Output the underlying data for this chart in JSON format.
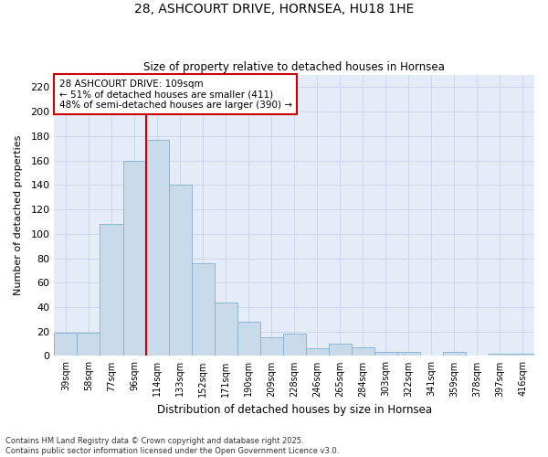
{
  "title": "28, ASHCOURT DRIVE, HORNSEA, HU18 1HE",
  "subtitle": "Size of property relative to detached houses in Hornsea",
  "xlabel": "Distribution of detached houses by size in Hornsea",
  "ylabel": "Number of detached properties",
  "categories": [
    "39sqm",
    "58sqm",
    "77sqm",
    "96sqm",
    "114sqm",
    "133sqm",
    "152sqm",
    "171sqm",
    "190sqm",
    "209sqm",
    "228sqm",
    "246sqm",
    "265sqm",
    "284sqm",
    "303sqm",
    "322sqm",
    "341sqm",
    "359sqm",
    "378sqm",
    "397sqm",
    "416sqm"
  ],
  "values": [
    19,
    19,
    108,
    160,
    177,
    140,
    76,
    44,
    28,
    15,
    18,
    6,
    10,
    7,
    3,
    3,
    0,
    3,
    0,
    2,
    2
  ],
  "bar_color": "#c9daea",
  "bar_edge_color": "#7fb0d0",
  "marker_line_color": "#cc0000",
  "annotation_box_edge_color": "#cc0000",
  "annotation_text_line1": "28 ASHCOURT DRIVE: 109sqm",
  "annotation_text_line2": "← 51% of detached houses are smaller (411)",
  "annotation_text_line3": "48% of semi-detached houses are larger (390) →",
  "marker_bin_index": 4,
  "ylim": [
    0,
    230
  ],
  "yticks": [
    0,
    20,
    40,
    60,
    80,
    100,
    120,
    140,
    160,
    180,
    200,
    220
  ],
  "grid_color": "#c8d4e8",
  "background_color": "#e4ecf7",
  "footer_line1": "Contains HM Land Registry data © Crown copyright and database right 2025.",
  "footer_line2": "Contains public sector information licensed under the Open Government Licence v3.0."
}
